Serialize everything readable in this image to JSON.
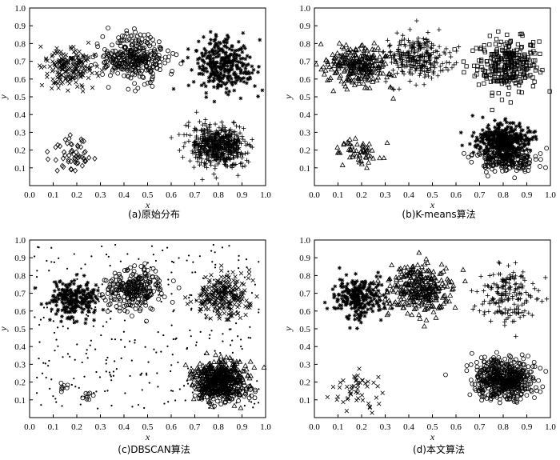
{
  "chart_data": [
    {
      "type": "scatter",
      "title": "(a)原始分布",
      "xlabel": "x",
      "ylabel": "y",
      "xlim": [
        0.0,
        1.0
      ],
      "ylim": [
        0.0,
        1.0
      ],
      "xticks": [
        "0.0",
        "0.1",
        "0.2",
        "0.3",
        "0.4",
        "0.5",
        "0.6",
        "0.7",
        "0.8",
        "0.9",
        "1.0"
      ],
      "yticks": [
        "0.1",
        "0.2",
        "0.3",
        "0.4",
        "0.5",
        "0.6",
        "0.7",
        "0.8",
        "0.9",
        "1.0"
      ],
      "grid": false,
      "clusters": [
        {
          "marker": "x",
          "center": [
            0.17,
            0.66
          ],
          "spread": [
            0.055,
            0.055
          ],
          "n": 190,
          "seed": 11
        },
        {
          "marker": "circle",
          "center": [
            0.44,
            0.72
          ],
          "spread": [
            0.07,
            0.065
          ],
          "n": 330,
          "seed": 12
        },
        {
          "marker": "star",
          "center": [
            0.82,
            0.68
          ],
          "spread": [
            0.065,
            0.075
          ],
          "n": 330,
          "seed": 13
        },
        {
          "marker": "diamond",
          "center": [
            0.18,
            0.17
          ],
          "spread": [
            0.05,
            0.05
          ],
          "n": 55,
          "seed": 14
        },
        {
          "marker": "plus",
          "center": [
            0.8,
            0.22
          ],
          "spread": [
            0.06,
            0.055
          ],
          "n": 560,
          "seed": 15
        }
      ]
    },
    {
      "type": "scatter",
      "title": "(b)K-means算法",
      "xlabel": "x",
      "ylabel": "y",
      "xlim": [
        0.0,
        1.0
      ],
      "ylim": [
        0.0,
        1.0
      ],
      "xticks": [
        "0.0",
        "0.1",
        "0.2",
        "0.3",
        "0.4",
        "0.5",
        "0.6",
        "0.7",
        "0.8",
        "0.9",
        "1.0"
      ],
      "yticks": [
        "0.1",
        "0.2",
        "0.3",
        "0.4",
        "0.5",
        "0.6",
        "0.7",
        "0.8",
        "0.9",
        "1.0"
      ],
      "grid": false,
      "clusters": [
        {
          "marker": "triangle",
          "center": [
            0.18,
            0.67
          ],
          "spread": [
            0.065,
            0.06
          ],
          "n": 260,
          "seed": 21
        },
        {
          "marker": "plus",
          "center": [
            0.43,
            0.72
          ],
          "spread": [
            0.07,
            0.065
          ],
          "n": 280,
          "seed": 22
        },
        {
          "marker": "square",
          "center": [
            0.82,
            0.68
          ],
          "spread": [
            0.065,
            0.075
          ],
          "n": 300,
          "seed": 23
        },
        {
          "marker": "triangle",
          "center": [
            0.19,
            0.18
          ],
          "spread": [
            0.05,
            0.05
          ],
          "n": 55,
          "seed": 24
        },
        {
          "marker": "star",
          "center": [
            0.8,
            0.25
          ],
          "spread": [
            0.055,
            0.045
          ],
          "n": 420,
          "seed": 25
        },
        {
          "marker": "circle",
          "center": [
            0.81,
            0.15
          ],
          "spread": [
            0.06,
            0.035
          ],
          "n": 220,
          "seed": 26
        }
      ]
    },
    {
      "type": "scatter",
      "title": "(c)DBSCAN算法",
      "xlabel": "x",
      "ylabel": "y",
      "xlim": [
        0.0,
        1.0
      ],
      "ylim": [
        0.0,
        1.0
      ],
      "xticks": [
        "0.0",
        "0.1",
        "0.2",
        "0.3",
        "0.4",
        "0.5",
        "0.6",
        "0.7",
        "0.8",
        "0.9",
        "1.0"
      ],
      "yticks": [
        "0.1",
        "0.2",
        "0.3",
        "0.4",
        "0.5",
        "0.6",
        "0.7",
        "0.8",
        "0.9",
        "1.0"
      ],
      "grid": false,
      "clusters": [
        {
          "marker": "star",
          "center": [
            0.18,
            0.67
          ],
          "spread": [
            0.05,
            0.05
          ],
          "n": 240,
          "seed": 31
        },
        {
          "marker": "circle",
          "center": [
            0.44,
            0.72
          ],
          "spread": [
            0.06,
            0.055
          ],
          "n": 260,
          "seed": 32
        },
        {
          "marker": "x",
          "center": [
            0.82,
            0.68
          ],
          "spread": [
            0.055,
            0.06
          ],
          "n": 240,
          "seed": 33
        },
        {
          "marker": "triangle",
          "center": [
            0.8,
            0.22
          ],
          "spread": [
            0.055,
            0.05
          ],
          "n": 450,
          "seed": 34
        },
        {
          "marker": "circle",
          "center": [
            0.81,
            0.14
          ],
          "spread": [
            0.06,
            0.03
          ],
          "n": 120,
          "seed": 35
        },
        {
          "marker": "circle",
          "center": [
            0.15,
            0.17
          ],
          "spread": [
            0.012,
            0.015
          ],
          "n": 8,
          "seed": 36
        },
        {
          "marker": "circle",
          "center": [
            0.25,
            0.12
          ],
          "spread": [
            0.012,
            0.015
          ],
          "n": 8,
          "seed": 37
        },
        {
          "marker": "dot",
          "center": [
            0.5,
            0.5
          ],
          "spread": [
            0.3,
            0.3
          ],
          "n": 340,
          "seed": 38
        }
      ]
    },
    {
      "type": "scatter",
      "title": "(d)本文算法",
      "xlabel": "x",
      "ylabel": "y",
      "xlim": [
        0.0,
        1.0
      ],
      "ylim": [
        0.0,
        1.0
      ],
      "xticks": [
        "0.0",
        "0.1",
        "0.2",
        "0.3",
        "0.4",
        "0.5",
        "0.6",
        "0.7",
        "0.8",
        "0.9",
        "1.0"
      ],
      "yticks": [
        "0.1",
        "0.2",
        "0.3",
        "0.4",
        "0.5",
        "0.6",
        "0.7",
        "0.8",
        "0.9",
        "1.0"
      ],
      "grid": false,
      "clusters": [
        {
          "marker": "star",
          "center": [
            0.18,
            0.67
          ],
          "spread": [
            0.055,
            0.055
          ],
          "n": 260,
          "seed": 41
        },
        {
          "marker": "triangle",
          "center": [
            0.44,
            0.72
          ],
          "spread": [
            0.07,
            0.065
          ],
          "n": 310,
          "seed": 42
        },
        {
          "marker": "plus",
          "center": [
            0.82,
            0.68
          ],
          "spread": [
            0.065,
            0.075
          ],
          "n": 180,
          "seed": 43
        },
        {
          "marker": "x",
          "center": [
            0.18,
            0.17
          ],
          "spread": [
            0.05,
            0.05
          ],
          "n": 50,
          "seed": 44
        },
        {
          "marker": "circle",
          "center": [
            0.8,
            0.22
          ],
          "spread": [
            0.06,
            0.055
          ],
          "n": 560,
          "seed": 45
        }
      ]
    }
  ]
}
